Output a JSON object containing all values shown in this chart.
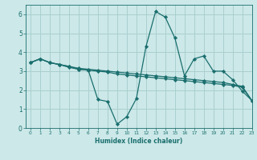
{
  "xlabel": "Humidex (Indice chaleur)",
  "xlim": [
    -0.5,
    23
  ],
  "ylim": [
    0,
    6.5
  ],
  "xticks": [
    0,
    1,
    2,
    3,
    4,
    5,
    6,
    7,
    8,
    9,
    10,
    11,
    12,
    13,
    14,
    15,
    16,
    17,
    18,
    19,
    20,
    21,
    22,
    23
  ],
  "yticks": [
    0,
    1,
    2,
    3,
    4,
    5,
    6
  ],
  "bg_color": "#cce8e8",
  "grid_color": "#aacfcf",
  "line_color": "#1a6e6e",
  "line_width": 0.9,
  "marker": "D",
  "marker_size": 2.2,
  "series": [
    [
      3.45,
      3.65,
      3.45,
      3.35,
      3.25,
      3.1,
      3.05,
      1.5,
      1.4,
      0.2,
      0.6,
      1.55,
      4.3,
      6.15,
      5.85,
      4.75,
      2.75,
      3.65,
      3.8,
      3.0,
      3.0,
      2.55,
      1.95,
      1.45
    ],
    [
      3.45,
      3.65,
      3.45,
      3.35,
      3.25,
      3.15,
      3.1,
      3.05,
      3.0,
      2.95,
      2.9,
      2.85,
      2.8,
      2.75,
      2.7,
      2.65,
      2.6,
      2.55,
      2.5,
      2.45,
      2.4,
      2.3,
      2.2,
      1.45
    ],
    [
      3.45,
      3.65,
      3.45,
      3.35,
      3.2,
      3.1,
      3.05,
      3.0,
      2.95,
      2.85,
      2.8,
      2.75,
      2.7,
      2.65,
      2.6,
      2.55,
      2.5,
      2.45,
      2.4,
      2.35,
      2.3,
      2.25,
      2.15,
      1.45
    ]
  ]
}
